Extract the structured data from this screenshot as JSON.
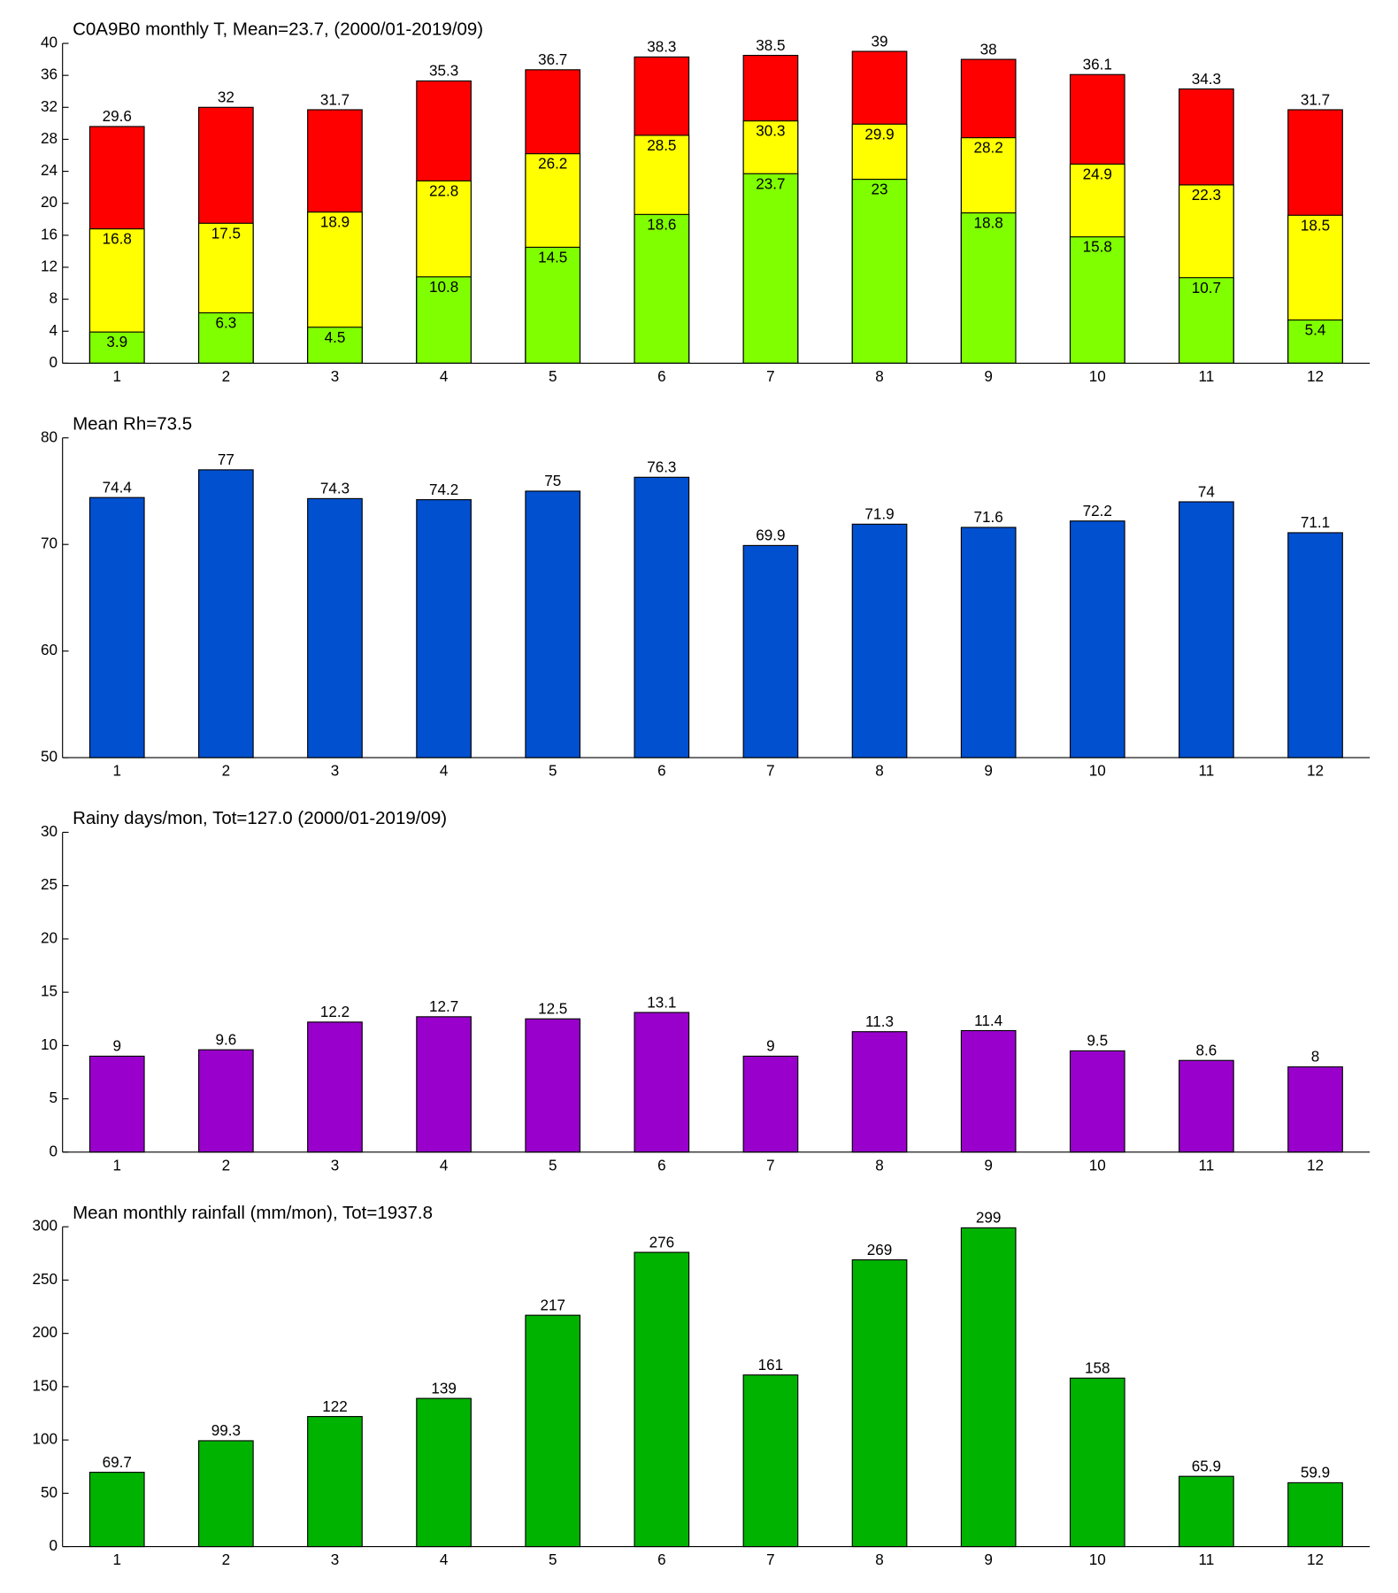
{
  "chart_data": [
    {
      "type": "bar",
      "title": "C0A9B0 monthly T, Mean=23.7, (2000/01-2019/09)",
      "categories": [
        1,
        2,
        3,
        4,
        5,
        6,
        7,
        8,
        9,
        10,
        11,
        12
      ],
      "series": [
        {
          "color": "#ff0000",
          "values": [
            29.6,
            32,
            31.7,
            35.3,
            36.7,
            38.3,
            38.5,
            39,
            38,
            36.1,
            34.3,
            31.7
          ]
        },
        {
          "color": "#ffff00",
          "values": [
            16.8,
            17.5,
            18.9,
            22.8,
            26.2,
            28.5,
            30.3,
            29.9,
            28.2,
            24.9,
            22.3,
            18.5
          ]
        },
        {
          "color": "#80ff00",
          "values": [
            3.9,
            6.3,
            4.5,
            10.8,
            14.5,
            18.6,
            23.7,
            23,
            18.8,
            15.8,
            10.7,
            5.4
          ]
        }
      ],
      "ylim": [
        0,
        40
      ],
      "yticks": [
        0,
        4,
        8,
        12,
        16,
        20,
        24,
        28,
        32,
        36,
        40
      ]
    },
    {
      "type": "bar",
      "title": "Mean Rh=73.5",
      "categories": [
        1,
        2,
        3,
        4,
        5,
        6,
        7,
        8,
        9,
        10,
        11,
        12
      ],
      "series": [
        {
          "color": "#0050d0",
          "values": [
            74.4,
            77,
            74.3,
            74.2,
            75,
            76.3,
            69.9,
            71.9,
            71.6,
            72.2,
            74,
            71.1
          ]
        }
      ],
      "ylim": [
        50,
        80
      ],
      "yticks": [
        50,
        60,
        70,
        80
      ]
    },
    {
      "type": "bar",
      "title": "Rainy days/mon, Tot=127.0 (2000/01-2019/09)",
      "categories": [
        1,
        2,
        3,
        4,
        5,
        6,
        7,
        8,
        9,
        10,
        11,
        12
      ],
      "series": [
        {
          "color": "#9900cc",
          "values": [
            9,
            9.6,
            12.2,
            12.7,
            12.5,
            13.1,
            9,
            11.3,
            11.4,
            9.5,
            8.6,
            8
          ]
        }
      ],
      "ylim": [
        0,
        30
      ],
      "yticks": [
        0,
        5,
        10,
        15,
        20,
        25,
        30
      ]
    },
    {
      "type": "bar",
      "title": "Mean monthly rainfall (mm/mon), Tot=1937.8",
      "categories": [
        1,
        2,
        3,
        4,
        5,
        6,
        7,
        8,
        9,
        10,
        11,
        12
      ],
      "series": [
        {
          "color": "#00b300",
          "values": [
            69.7,
            99.3,
            122,
            139,
            217,
            276,
            161,
            269,
            299,
            158,
            65.9,
            59.9
          ]
        }
      ],
      "ylim": [
        0,
        300
      ],
      "yticks": [
        0,
        50,
        100,
        150,
        200,
        250,
        300
      ]
    }
  ]
}
